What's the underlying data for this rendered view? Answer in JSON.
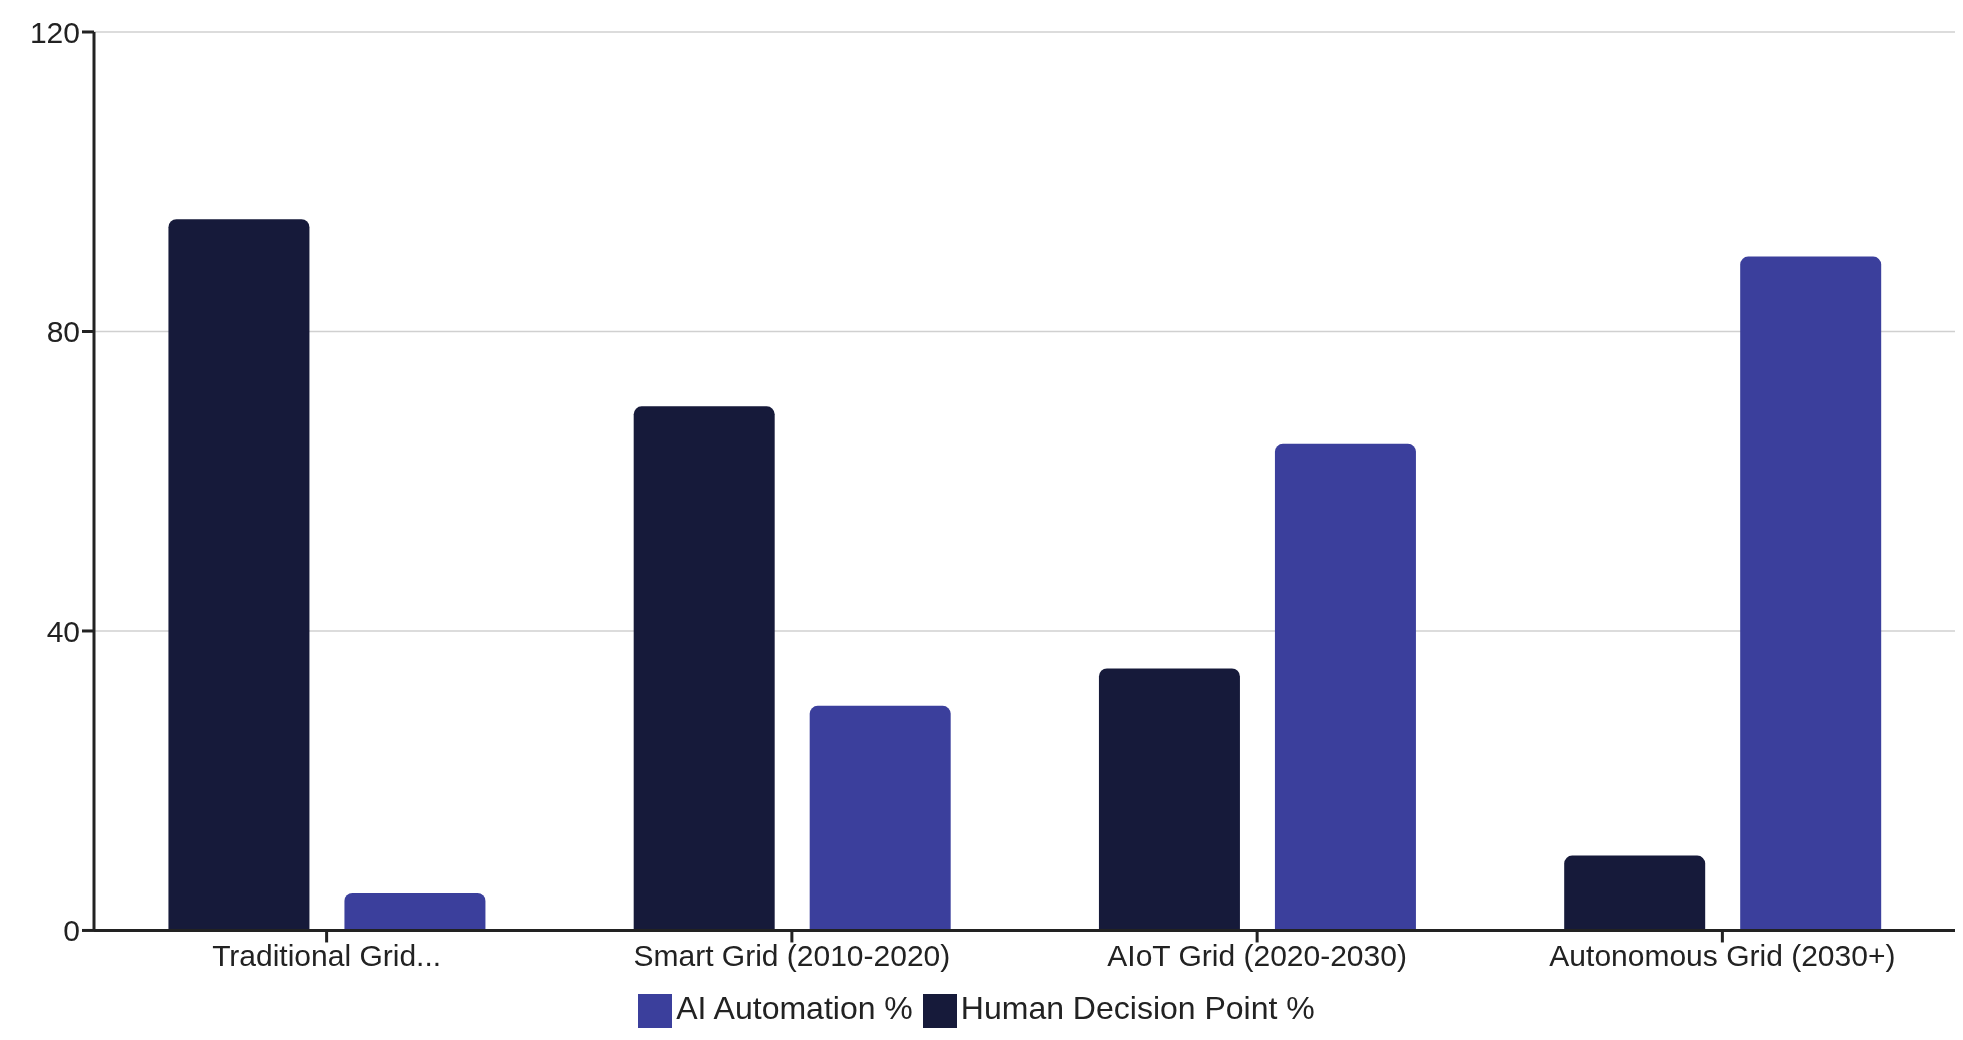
{
  "chart_data": {
    "type": "bar",
    "categories": [
      "Traditional Grid...",
      "Smart Grid (2010-2020)",
      "AIoT Grid (2020-2030)",
      "Autonomous Grid (2030+)"
    ],
    "series": [
      {
        "name": "Human Decision Point %",
        "color": "#161a3a",
        "values": [
          95,
          70,
          35,
          10
        ]
      },
      {
        "name": "AI Automation %",
        "color": "#3b3f9c",
        "values": [
          5,
          30,
          65,
          90
        ]
      }
    ],
    "ylim": [
      0,
      120
    ],
    "yticks": [
      0,
      40,
      80,
      120
    ],
    "grid": "y",
    "legend": "bottom"
  }
}
